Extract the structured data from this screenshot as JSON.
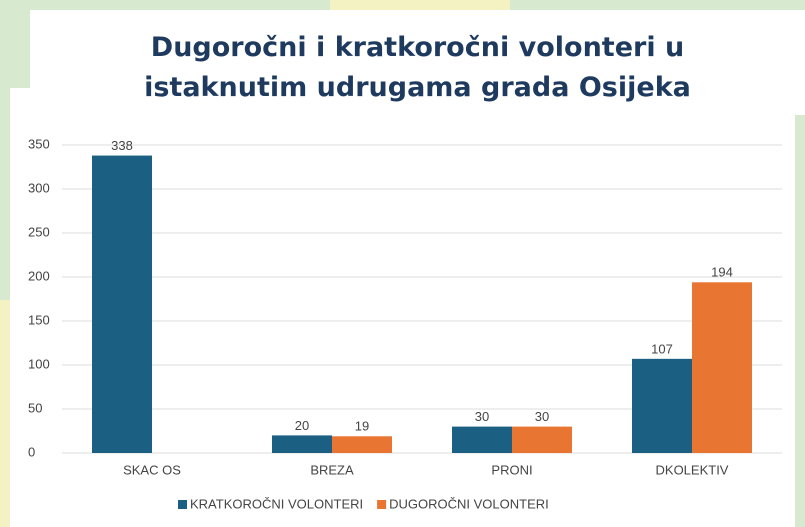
{
  "chart_data": {
    "type": "bar",
    "title": "Dugoročni i kratkoročni volonteri u istaknutim udrugama grada Osijeka",
    "categories": [
      "SKAC OS",
      "BREZA",
      "PRONI",
      "DKOLEKTIV"
    ],
    "series": [
      {
        "name": "KRATKOROČNI VOLONTERI",
        "color": "#1b5f82",
        "values": [
          338,
          20,
          30,
          107
        ]
      },
      {
        "name": "DUGOROČNI VOLONTERI",
        "color": "#e87532",
        "values": [
          null,
          19,
          30,
          194
        ]
      }
    ],
    "ylim": [
      0,
      400
    ],
    "yticks": [
      0,
      50,
      100,
      150,
      200,
      250,
      300,
      350
    ],
    "grid": true,
    "legend": "bottom"
  }
}
